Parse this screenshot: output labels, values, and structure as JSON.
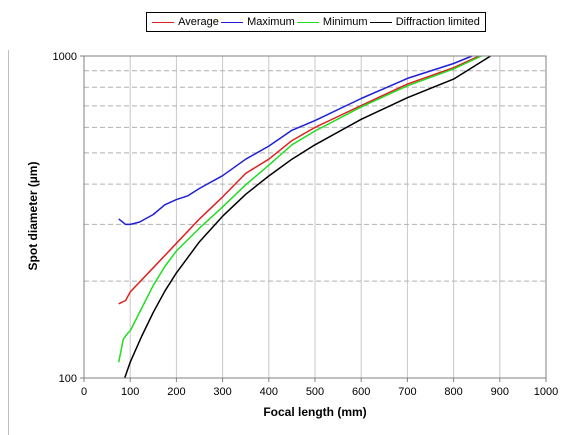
{
  "chart_data": {
    "type": "line",
    "xlabel": "Focal length (mm)",
    "ylabel": "Spot diameter (µm)",
    "xlim": [
      0,
      1000
    ],
    "ylim": [
      100,
      1000
    ],
    "y_scale": "log",
    "x_ticks": [
      0,
      100,
      200,
      300,
      400,
      500,
      600,
      700,
      800,
      900,
      1000
    ],
    "x_tick_labels": [
      "0",
      "100",
      "200",
      "300",
      "400",
      "500",
      "600",
      "700",
      "800",
      "900",
      "1000"
    ],
    "y_ticks": [
      100,
      1000
    ],
    "y_tick_labels": [
      "100",
      "1000"
    ],
    "y_gridlines": [
      200,
      300,
      400,
      500,
      600,
      700,
      800,
      900
    ],
    "grid": true,
    "legend_position": "top",
    "series": [
      {
        "name": "Average",
        "color": "#e02020",
        "x": [
          75,
          90,
          100,
          150,
          200,
          250,
          300,
          350,
          400,
          450,
          500,
          600,
          700,
          800,
          855
        ],
        "y": [
          170,
          174,
          185,
          220,
          262,
          312,
          365,
          432,
          478,
          546,
          600,
          702,
          818,
          920,
          1000
        ]
      },
      {
        "name": "Maximum",
        "color": "#1f1fd6",
        "x": [
          75,
          90,
          100,
          120,
          150,
          175,
          200,
          225,
          250,
          300,
          350,
          400,
          450,
          500,
          600,
          700,
          800,
          840
        ],
        "y": [
          312,
          300,
          300,
          305,
          322,
          345,
          358,
          368,
          388,
          425,
          478,
          525,
          588,
          630,
          738,
          852,
          948,
          1000
        ]
      },
      {
        "name": "Minimum",
        "color": "#22dd22",
        "x": [
          75,
          85,
          95,
          100,
          125,
          150,
          175,
          200,
          250,
          300,
          350,
          400,
          450,
          500,
          600,
          700,
          800,
          860
        ],
        "y": [
          112,
          132,
          138,
          140,
          165,
          194,
          222,
          248,
          292,
          340,
          398,
          458,
          530,
          585,
          695,
          808,
          912,
          1000
        ]
      },
      {
        "name": "Diffraction limited",
        "color": "#000000",
        "x": [
          88,
          100,
          125,
          150,
          175,
          200,
          250,
          300,
          350,
          400,
          450,
          500,
          600,
          700,
          800,
          880
        ],
        "y": [
          100,
          112,
          135,
          160,
          186,
          212,
          265,
          318,
          372,
          424,
          478,
          530,
          636,
          742,
          848,
          1000
        ]
      }
    ]
  }
}
